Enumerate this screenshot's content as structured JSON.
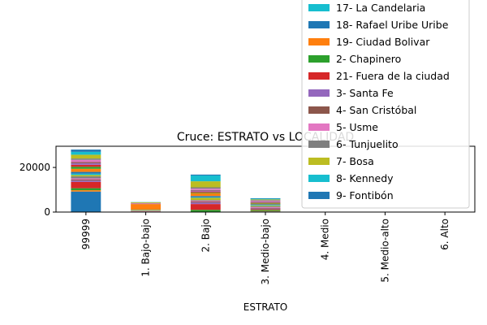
{
  "chart_data": {
    "type": "bar",
    "stacked": true,
    "title": "Cruce: ESTRATO vs LOCALIDAD",
    "xlabel": "ESTRATO",
    "ylabel": "",
    "categories": [
      "99999",
      "1. Bajo-bajo",
      "2. Bajo",
      "3. Medio-bajo",
      "4. Medio",
      "5. Medio-alto",
      "6. Alto"
    ],
    "yticks": [
      0,
      20000
    ],
    "ylim": [
      0,
      29500
    ],
    "legend_position": "upper-right",
    "legend_visible": [
      {
        "name": "17- La Candelaria",
        "color": "#17becf"
      },
      {
        "name": "18- Rafael Uribe Uribe",
        "color": "#1f77b4"
      },
      {
        "name": "19- Ciudad Bolivar",
        "color": "#ff7f0e"
      },
      {
        "name": "2- Chapinero",
        "color": "#2ca02c"
      },
      {
        "name": "21- Fuera de la ciudad",
        "color": "#d62728"
      },
      {
        "name": "3- Santa Fe",
        "color": "#9467bd"
      },
      {
        "name": "4- San Cristóbal",
        "color": "#8c564b"
      },
      {
        "name": "5- Usme",
        "color": "#e377c2"
      },
      {
        "name": "6- Tunjuelito",
        "color": "#7f7f7f"
      },
      {
        "name": "7- Bosa",
        "color": "#bcbd22"
      },
      {
        "name": "8- Kennedy",
        "color": "#17becf"
      },
      {
        "name": "9- Fontibón",
        "color": "#1f77b4"
      }
    ],
    "series": [
      {
        "color": "#1f77b4",
        "values": [
          9200,
          0,
          0,
          300,
          0,
          0,
          0
        ]
      },
      {
        "color": "#ff7f0e",
        "values": [
          600,
          0,
          0,
          200,
          0,
          0,
          0
        ]
      },
      {
        "color": "#2ca02c",
        "values": [
          900,
          100,
          1000,
          500,
          0,
          0,
          0
        ]
      },
      {
        "color": "#d62728",
        "values": [
          2800,
          0,
          2600,
          300,
          0,
          0,
          0
        ]
      },
      {
        "color": "#9467bd",
        "values": [
          600,
          100,
          700,
          300,
          0,
          0,
          0
        ]
      },
      {
        "color": "#8c564b",
        "values": [
          500,
          100,
          500,
          300,
          0,
          0,
          0
        ]
      },
      {
        "color": "#e377c2",
        "values": [
          500,
          200,
          300,
          300,
          0,
          0,
          0
        ]
      },
      {
        "color": "#7f7f7f",
        "values": [
          900,
          100,
          300,
          400,
          0,
          0,
          0
        ]
      },
      {
        "color": "#bcbd22",
        "values": [
          600,
          300,
          1000,
          300,
          0,
          0,
          0
        ]
      },
      {
        "color": "#17becf",
        "values": [
          600,
          100,
          200,
          300,
          0,
          0,
          0
        ]
      },
      {
        "color": "#1f77b4",
        "values": [
          800,
          100,
          600,
          300,
          0,
          0,
          0
        ]
      },
      {
        "color": "#ff7f0e",
        "values": [
          1400,
          2500,
          1300,
          300,
          0,
          0,
          0
        ]
      },
      {
        "color": "#2ca02c",
        "values": [
          900,
          0,
          300,
          300,
          0,
          0,
          0
        ]
      },
      {
        "color": "#d62728",
        "values": [
          900,
          0,
          400,
          200,
          0,
          0,
          0
        ]
      },
      {
        "color": "#9467bd",
        "values": [
          700,
          100,
          400,
          300,
          0,
          0,
          0
        ]
      },
      {
        "color": "#8c564b",
        "values": [
          500,
          100,
          300,
          200,
          0,
          0,
          0
        ]
      },
      {
        "color": "#e377c2",
        "values": [
          1000,
          200,
          600,
          300,
          0,
          0,
          0
        ]
      },
      {
        "color": "#7f7f7f",
        "values": [
          600,
          100,
          600,
          300,
          0,
          0,
          0
        ]
      },
      {
        "color": "#bcbd22",
        "values": [
          1700,
          300,
          2700,
          300,
          0,
          0,
          0
        ]
      },
      {
        "color": "#17becf",
        "values": [
          1300,
          100,
          2600,
          300,
          0,
          0,
          0
        ]
      },
      {
        "color": "#1f77b4",
        "values": [
          1000,
          0,
          400,
          200,
          0,
          0,
          0
        ]
      }
    ]
  }
}
